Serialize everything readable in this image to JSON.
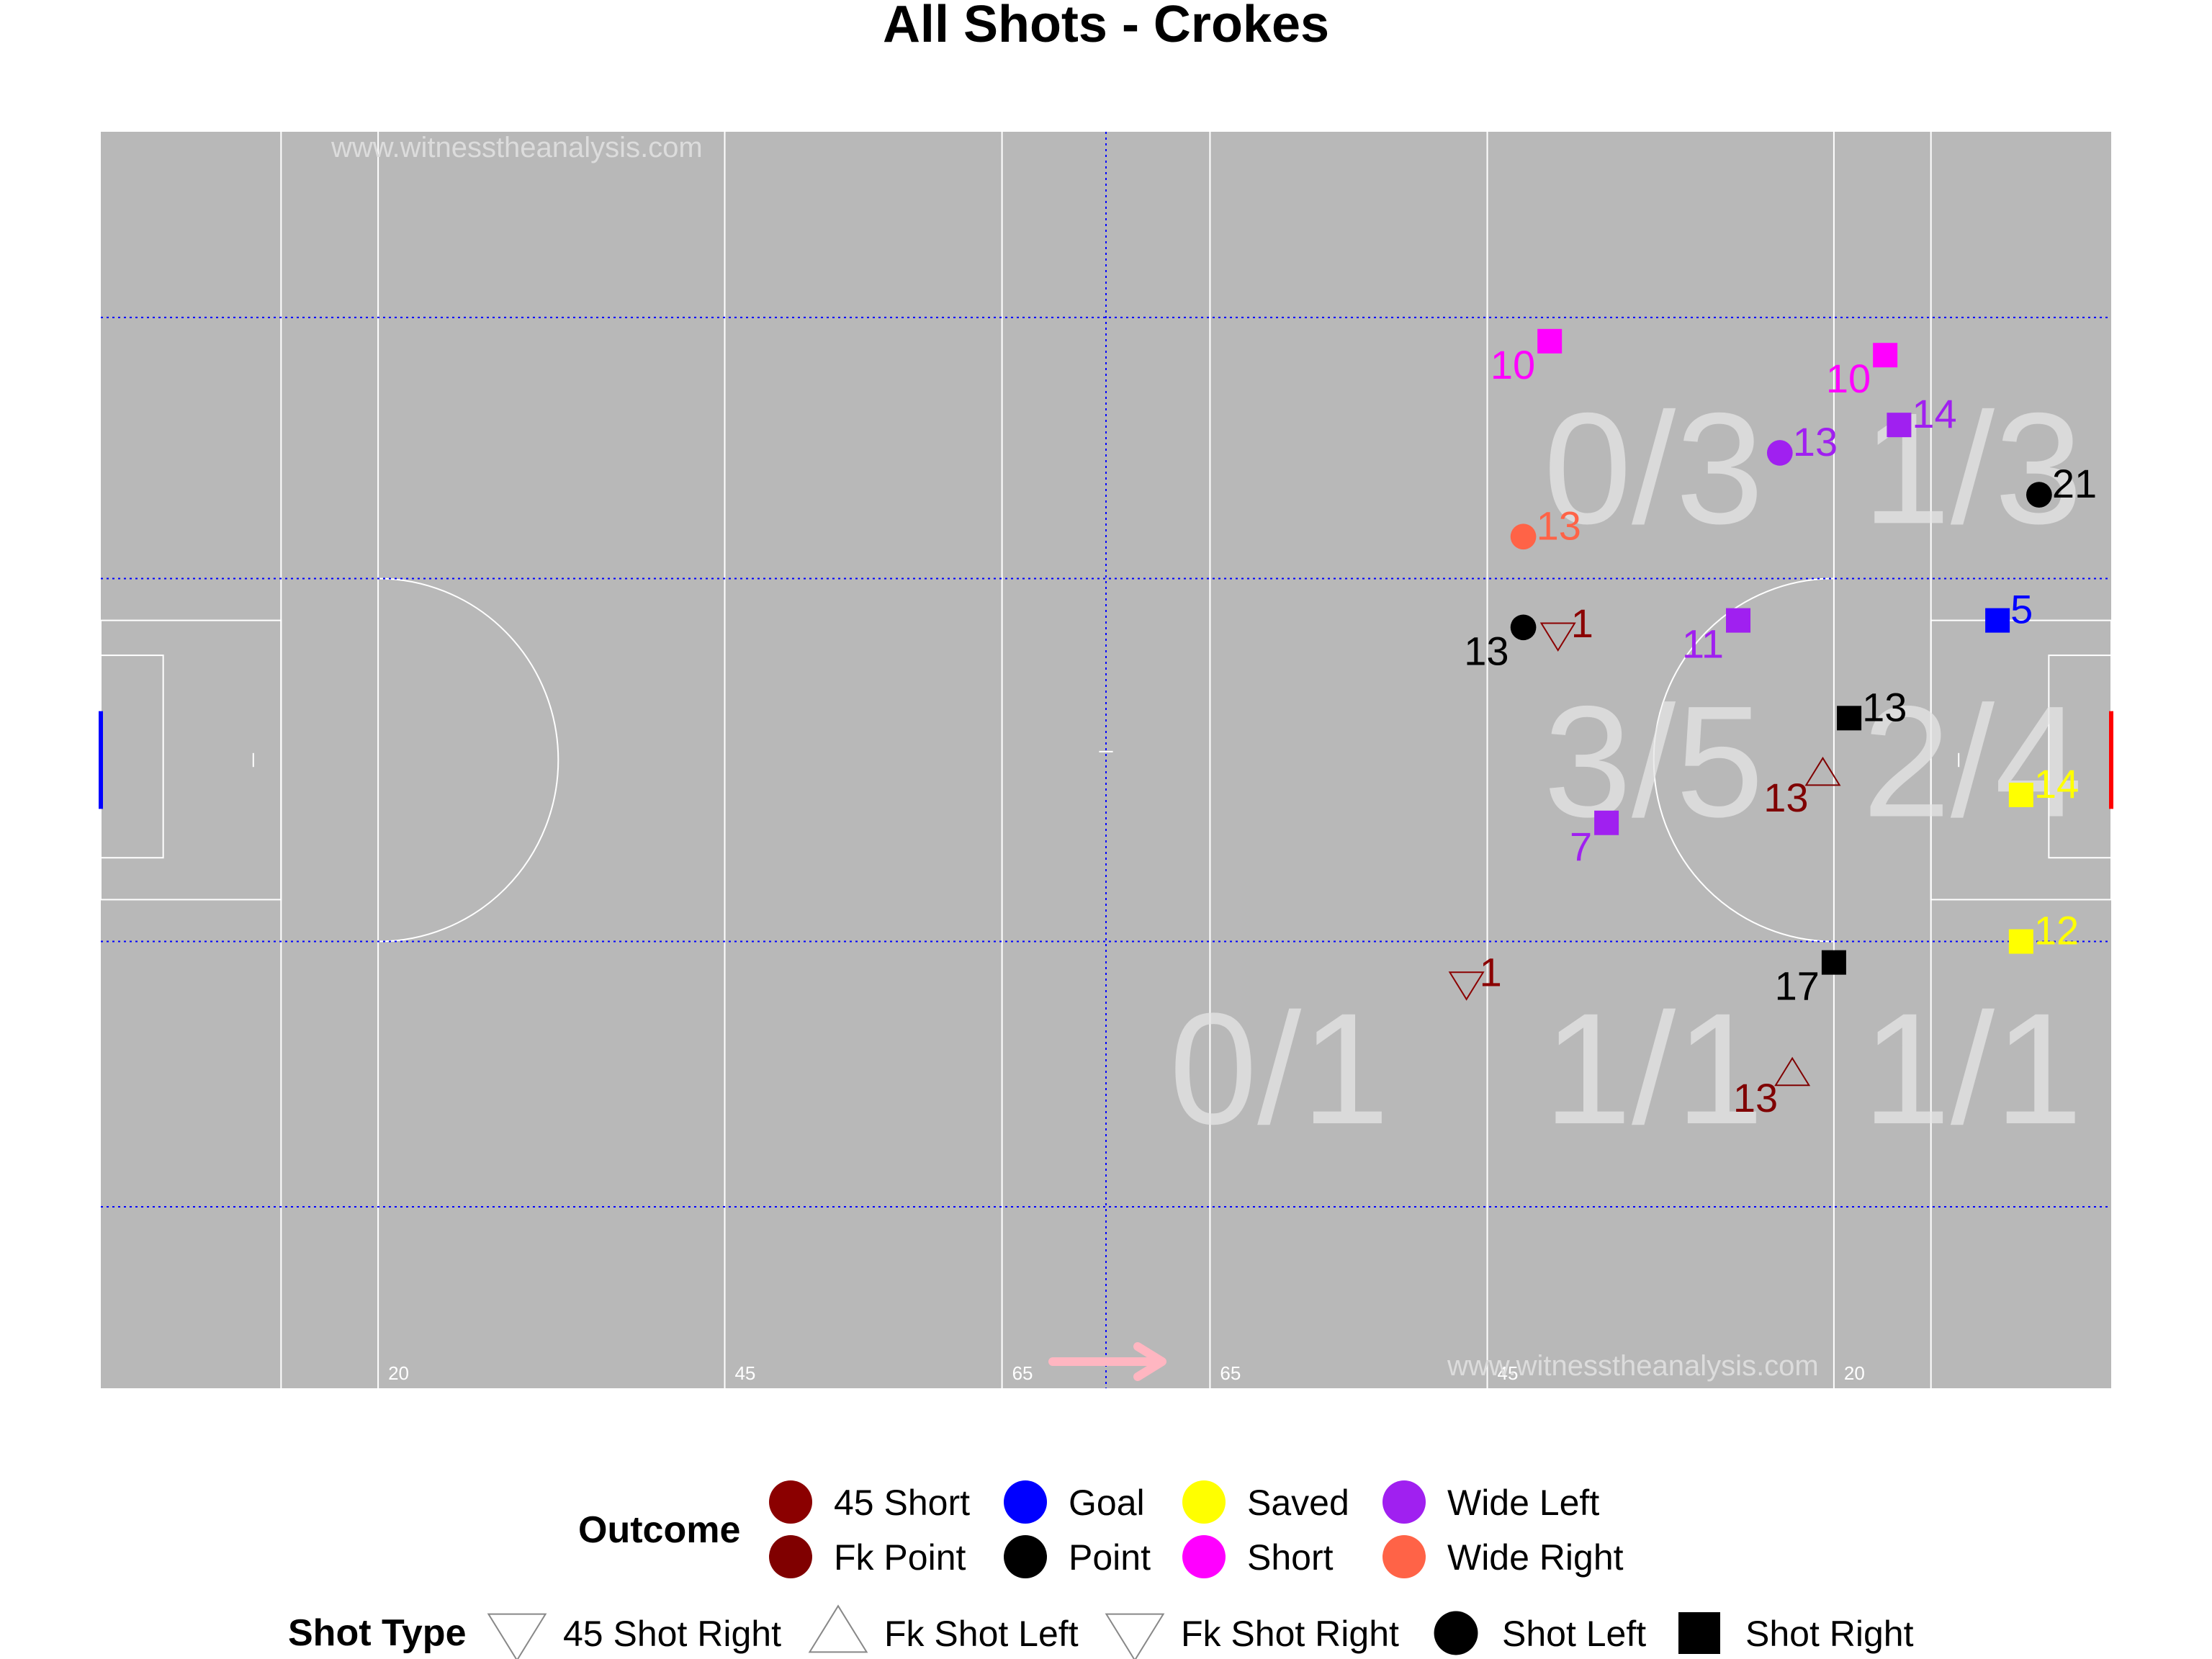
{
  "chart_data": {
    "type": "scatter",
    "title": "All Shots - Crokes",
    "watermark": "www.witnesstheanalysis.com",
    "attack_direction": "right",
    "xlim": [
      0,
      145
    ],
    "ylim": [
      0,
      90
    ],
    "pitch_tick_labels": [
      {
        "x": 20,
        "label": "20"
      },
      {
        "x": 45,
        "label": "45"
      },
      {
        "x": 65,
        "label": "65"
      },
      {
        "x": 80,
        "label": "65"
      },
      {
        "x": 100,
        "label": "45"
      },
      {
        "x": 125,
        "label": "20"
      }
    ],
    "zone_labels": [
      {
        "x": 112,
        "y": 66,
        "text": "0/3"
      },
      {
        "x": 135,
        "y": 66,
        "text": "1/3"
      },
      {
        "x": 112,
        "y": 45,
        "text": "3/5"
      },
      {
        "x": 135,
        "y": 45,
        "text": "2/4"
      },
      {
        "x": 85,
        "y": 23,
        "text": "0/1"
      },
      {
        "x": 112,
        "y": 23,
        "text": "1/1"
      },
      {
        "x": 135,
        "y": 23,
        "text": "1/1"
      }
    ],
    "shots": [
      {
        "x": 104.5,
        "y": 75,
        "label": "10",
        "outcome": "Short",
        "shot_type": "Shot Right"
      },
      {
        "x": 128.7,
        "y": 74,
        "label": "10",
        "outcome": "Short",
        "shot_type": "Shot Right"
      },
      {
        "x": 121.1,
        "y": 67,
        "label": "13",
        "outcome": "Wide Left",
        "shot_type": "Shot Left"
      },
      {
        "x": 129.7,
        "y": 69,
        "label": "14",
        "outcome": "Wide Left",
        "shot_type": "Shot Right"
      },
      {
        "x": 139.8,
        "y": 64,
        "label": "21",
        "outcome": "Point",
        "shot_type": "Shot Left"
      },
      {
        "x": 102.6,
        "y": 61,
        "label": "13",
        "outcome": "Wide Right",
        "shot_type": "Shot Left"
      },
      {
        "x": 102.6,
        "y": 54.5,
        "label": "13",
        "outcome": "Point",
        "shot_type": "Shot Left"
      },
      {
        "x": 105.1,
        "y": 54,
        "label": "1",
        "outcome": "45 Short",
        "shot_type": "45 Shot Right"
      },
      {
        "x": 118.1,
        "y": 55,
        "label": "11",
        "outcome": "Wide Left",
        "shot_type": "Shot Right"
      },
      {
        "x": 136.8,
        "y": 55,
        "label": "5",
        "outcome": "Goal",
        "shot_type": "Shot Right"
      },
      {
        "x": 126.1,
        "y": 48,
        "label": "13",
        "outcome": "Point",
        "shot_type": "Shot Right"
      },
      {
        "x": 124.2,
        "y": 44,
        "label": "13",
        "outcome": "Fk Point",
        "shot_type": "Fk Shot Left"
      },
      {
        "x": 138.5,
        "y": 42.5,
        "label": "14",
        "outcome": "Saved",
        "shot_type": "Shot Right"
      },
      {
        "x": 108.6,
        "y": 40.5,
        "label": "7",
        "outcome": "Wide Left",
        "shot_type": "Shot Right"
      },
      {
        "x": 138.5,
        "y": 32,
        "label": "12",
        "outcome": "Saved",
        "shot_type": "Shot Right"
      },
      {
        "x": 125,
        "y": 30.5,
        "label": "17",
        "outcome": "Point",
        "shot_type": "Shot Right"
      },
      {
        "x": 98.5,
        "y": 29,
        "label": "1",
        "outcome": "45 Short",
        "shot_type": "45 Shot Right"
      },
      {
        "x": 122,
        "y": 22.5,
        "label": "13",
        "outcome": "Fk Point",
        "shot_type": "Fk Shot Left"
      }
    ],
    "legend": {
      "outcome_title": "Outcome",
      "outcomes": [
        {
          "name": "45 Short",
          "color": "#8b0000"
        },
        {
          "name": "Fk Point",
          "color": "#800000"
        },
        {
          "name": "Goal",
          "color": "#0000ff"
        },
        {
          "name": "Point",
          "color": "#000000"
        },
        {
          "name": "Saved",
          "color": "#ffff00"
        },
        {
          "name": "Short",
          "color": "#ff00ff"
        },
        {
          "name": "Wide Left",
          "color": "#a020f0"
        },
        {
          "name": "Wide Right",
          "color": "#ff6347"
        }
      ],
      "shot_type_title": "Shot Type",
      "shot_types": [
        {
          "name": "45 Shot Right",
          "shape": "triangle-down-open"
        },
        {
          "name": "Fk Shot Left",
          "shape": "triangle-up-open"
        },
        {
          "name": "Fk Shot Right",
          "shape": "triangle-down-open"
        },
        {
          "name": "Shot Left",
          "shape": "circle"
        },
        {
          "name": "Shot Right",
          "shape": "square"
        }
      ]
    },
    "colors": {
      "pitch": "#b8b8b8",
      "lines": "#ffffff",
      "grid": "#0000ff",
      "left_goal": "#0000ff",
      "right_goal": "#ff0000",
      "arrow": "#ffb6c1"
    }
  }
}
